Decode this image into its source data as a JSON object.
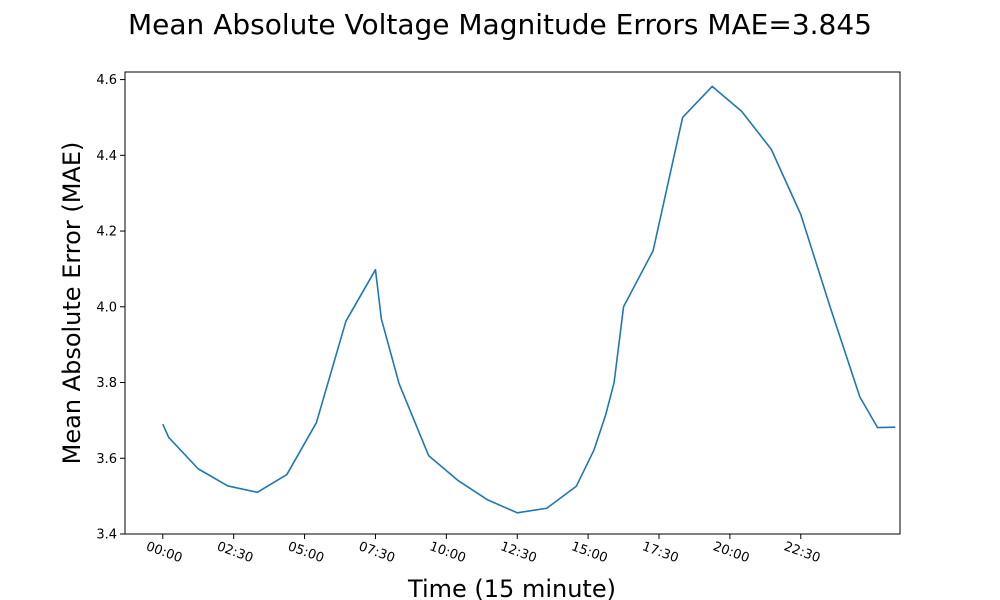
{
  "chart_data": {
    "type": "line",
    "title": "Mean Absolute Voltage Magnitude Errors MAE=3.845",
    "xlabel": "Time (15 minute)",
    "ylabel": "Mean Absolute Error (MAE)",
    "ylim": [
      3.4,
      4.62
    ],
    "xlim": [
      -1.6,
      31.2
    ],
    "grid": false,
    "line_color": "#1f77b4",
    "x_tick_positions": [
      0,
      3,
      6,
      9,
      12,
      15,
      18,
      21,
      24,
      27
    ],
    "x_tick_labels": [
      "00:00",
      "02:30",
      "05:00",
      "07:30",
      "10:00",
      "12:30",
      "15:00",
      "17:30",
      "20:00",
      "22:30"
    ],
    "y_ticks": [
      3.4,
      3.6,
      3.8,
      4.0,
      4.2,
      4.4,
      4.6
    ],
    "y_tick_labels": [
      "3.4",
      "3.6",
      "3.8",
      "4.0",
      "4.2",
      "4.4",
      "4.6"
    ],
    "series": [
      {
        "x": [
          0,
          0.25,
          1.5,
          2.75,
          4,
          5.25,
          6.5,
          7.75,
          9,
          9.25,
          10,
          11.25,
          12.5,
          13.75,
          15,
          16.25,
          17.5,
          18.25,
          18.75,
          19.1,
          19.5,
          20.75,
          22,
          23.25,
          24.5,
          25.75,
          27,
          28.25,
          29.5,
          30.25,
          31
        ],
        "y": [
          3.69,
          3.655,
          3.572,
          3.527,
          3.51,
          3.557,
          3.694,
          3.962,
          4.098,
          3.968,
          3.797,
          3.607,
          3.541,
          3.49,
          3.456,
          3.468,
          3.526,
          3.622,
          3.716,
          3.8,
          4.0,
          4.148,
          4.5,
          4.582,
          4.516,
          4.416,
          4.244,
          3.998,
          3.762,
          3.681,
          3.682
        ]
      }
    ]
  }
}
